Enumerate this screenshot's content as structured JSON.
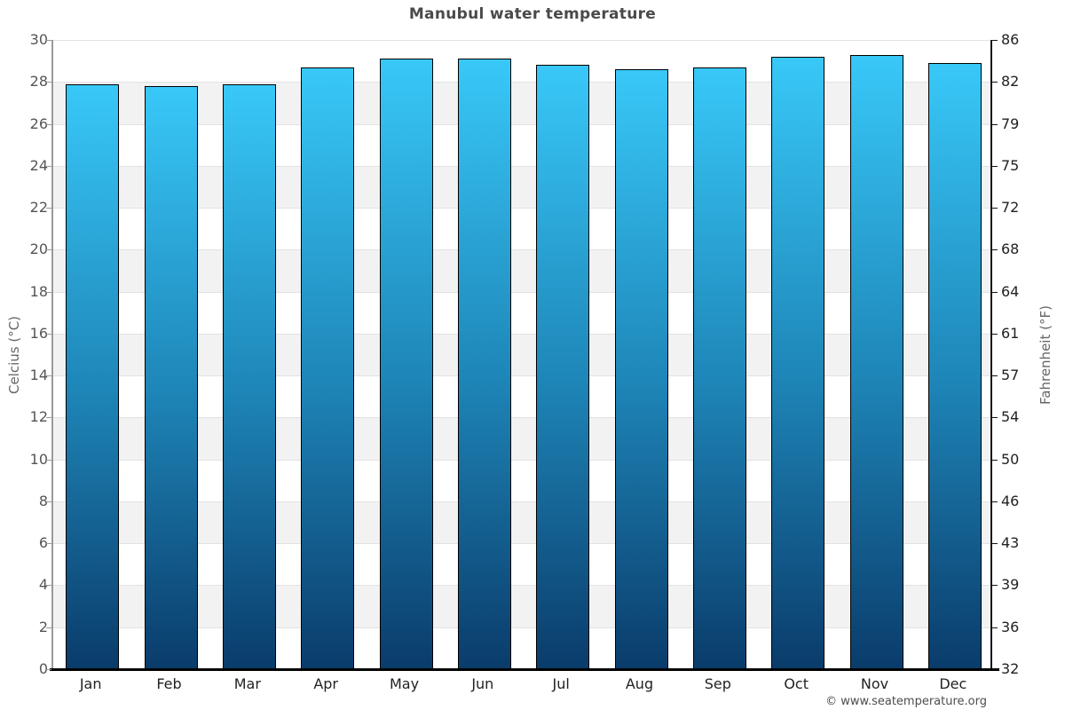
{
  "title": "Manubul water temperature",
  "footer": "© www.seatemperature.org",
  "chart_data": {
    "type": "bar",
    "title": "Manubul water temperature",
    "categories": [
      "Jan",
      "Feb",
      "Mar",
      "Apr",
      "May",
      "Jun",
      "Jul",
      "Aug",
      "Sep",
      "Oct",
      "Nov",
      "Dec"
    ],
    "values": [
      27.9,
      27.8,
      27.9,
      28.7,
      29.1,
      29.1,
      28.8,
      28.6,
      28.7,
      29.2,
      29.3,
      28.9
    ],
    "unit": "°C",
    "xlabel": "",
    "ylabel_left": "Celcius (°C)",
    "ylabel_right": "Fahrenheit (°F)",
    "ylim": [
      0,
      30
    ],
    "yticks_celsius": [
      0,
      2,
      4,
      6,
      8,
      10,
      12,
      14,
      16,
      18,
      20,
      22,
      24,
      26,
      28,
      30
    ],
    "yticks_fahrenheit": [
      32,
      36,
      39,
      43,
      46,
      50,
      54,
      57,
      61,
      64,
      68,
      72,
      75,
      79,
      82,
      86
    ],
    "legend": "none",
    "grid": "horizontal-bands",
    "colors": {
      "bar_gradient_top": "#38c8f8",
      "bar_gradient_mid": "#1e86b8",
      "bar_gradient_bottom": "#0a3c6b",
      "bar_border": "#000000",
      "band_fill": "#f2f2f2",
      "gridline": "#e2e2e2",
      "left_axis": "#9a9a9a",
      "right_axis": "#151515",
      "bottom_axis": "#000000",
      "title_text": "#4a4a4a",
      "tick_text": "#555555"
    }
  }
}
